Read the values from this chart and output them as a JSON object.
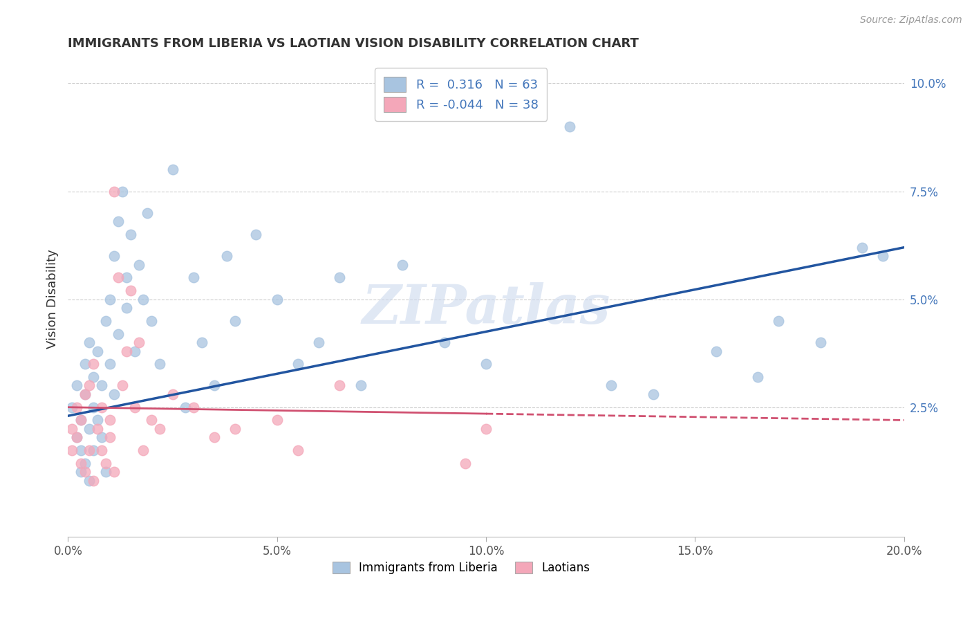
{
  "title": "IMMIGRANTS FROM LIBERIA VS LAOTIAN VISION DISABILITY CORRELATION CHART",
  "source": "Source: ZipAtlas.com",
  "ylabel": "Vision Disability",
  "xlim": [
    0.0,
    0.2
  ],
  "ylim": [
    -0.005,
    0.105
  ],
  "xticks": [
    0.0,
    0.05,
    0.1,
    0.15,
    0.2
  ],
  "xticklabels": [
    "0.0%",
    "5.0%",
    "10.0%",
    "15.0%",
    "20.0%"
  ],
  "yticks_right": [
    0.025,
    0.05,
    0.075,
    0.1
  ],
  "yticklabels_right": [
    "2.5%",
    "5.0%",
    "7.5%",
    "10.0%"
  ],
  "legend1_r": " 0.316",
  "legend1_n": "63",
  "legend2_r": "-0.044",
  "legend2_n": "38",
  "blue_color": "#a8c4e0",
  "pink_color": "#f4a7b9",
  "blue_line_color": "#2255a0",
  "pink_line_color": "#d05070",
  "grid_color": "#cccccc",
  "watermark": "ZIPatlas",
  "blue_points_x": [
    0.001,
    0.002,
    0.002,
    0.003,
    0.003,
    0.003,
    0.004,
    0.004,
    0.004,
    0.005,
    0.005,
    0.005,
    0.006,
    0.006,
    0.006,
    0.007,
    0.007,
    0.008,
    0.008,
    0.009,
    0.009,
    0.01,
    0.01,
    0.011,
    0.011,
    0.012,
    0.012,
    0.013,
    0.014,
    0.014,
    0.015,
    0.016,
    0.017,
    0.018,
    0.019,
    0.02,
    0.022,
    0.025,
    0.028,
    0.03,
    0.032,
    0.035,
    0.038,
    0.04,
    0.045,
    0.05,
    0.055,
    0.06,
    0.065,
    0.07,
    0.08,
    0.09,
    0.1,
    0.11,
    0.12,
    0.13,
    0.14,
    0.155,
    0.165,
    0.17,
    0.18,
    0.19,
    0.195
  ],
  "blue_points_y": [
    0.025,
    0.018,
    0.03,
    0.022,
    0.01,
    0.015,
    0.028,
    0.035,
    0.012,
    0.04,
    0.02,
    0.008,
    0.032,
    0.025,
    0.015,
    0.038,
    0.022,
    0.03,
    0.018,
    0.045,
    0.01,
    0.035,
    0.05,
    0.028,
    0.06,
    0.042,
    0.068,
    0.075,
    0.055,
    0.048,
    0.065,
    0.038,
    0.058,
    0.05,
    0.07,
    0.045,
    0.035,
    0.08,
    0.025,
    0.055,
    0.04,
    0.03,
    0.06,
    0.045,
    0.065,
    0.05,
    0.035,
    0.04,
    0.055,
    0.03,
    0.058,
    0.04,
    0.035,
    0.095,
    0.09,
    0.03,
    0.028,
    0.038,
    0.032,
    0.045,
    0.04,
    0.062,
    0.06
  ],
  "pink_points_x": [
    0.001,
    0.001,
    0.002,
    0.002,
    0.003,
    0.003,
    0.004,
    0.004,
    0.005,
    0.005,
    0.006,
    0.006,
    0.007,
    0.008,
    0.008,
    0.009,
    0.01,
    0.01,
    0.011,
    0.011,
    0.012,
    0.013,
    0.014,
    0.015,
    0.016,
    0.017,
    0.018,
    0.02,
    0.022,
    0.025,
    0.03,
    0.035,
    0.04,
    0.05,
    0.055,
    0.065,
    0.095,
    0.1
  ],
  "pink_points_y": [
    0.02,
    0.015,
    0.018,
    0.025,
    0.022,
    0.012,
    0.028,
    0.01,
    0.03,
    0.015,
    0.008,
    0.035,
    0.02,
    0.025,
    0.015,
    0.012,
    0.022,
    0.018,
    0.075,
    0.01,
    0.055,
    0.03,
    0.038,
    0.052,
    0.025,
    0.04,
    0.015,
    0.022,
    0.02,
    0.028,
    0.025,
    0.018,
    0.02,
    0.022,
    0.015,
    0.03,
    0.012,
    0.02
  ]
}
